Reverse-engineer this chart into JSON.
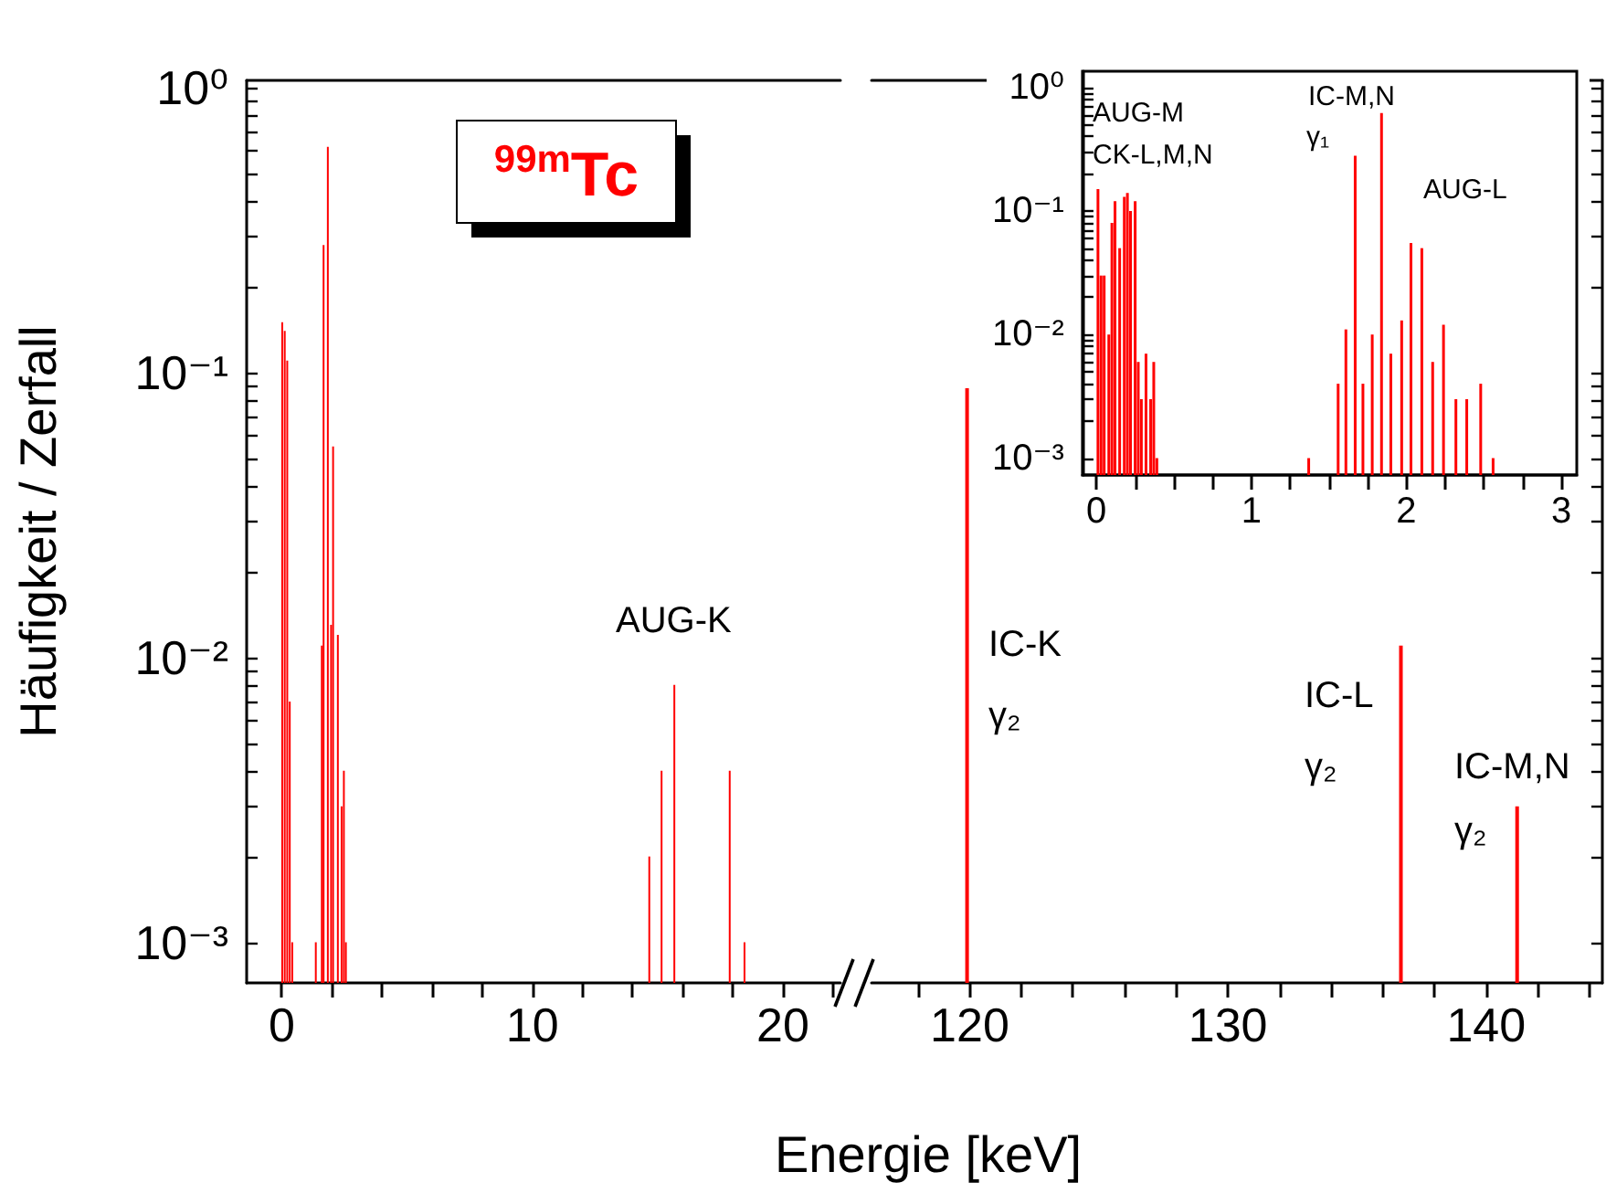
{
  "chart_data": [
    {
      "type": "bar",
      "title": "$^{99m}$Tc",
      "xlabel": "Energie [keV]",
      "ylabel": "Häufigkeit / Zerfall",
      "log": true,
      "grid": false,
      "color": "#ff0000",
      "x": [
        0.02,
        0.12,
        0.22,
        0.32,
        0.42,
        1.36,
        1.6,
        1.67,
        1.84,
        1.97,
        2.05,
        2.24,
        2.39,
        2.48,
        2.56,
        14.67,
        15.16,
        15.67,
        17.88,
        18.47
      ],
      "values": [
        0.15,
        0.14,
        0.11,
        0.007,
        0.001,
        0.001,
        0.011,
        0.28,
        0.62,
        0.013,
        0.055,
        0.012,
        0.003,
        0.004,
        0.001,
        0.002,
        0.004,
        0.008,
        0.004,
        0.001
      ],
      "xlim": [
        -1.4,
        22.3
      ],
      "xticks": [
        0,
        {
          "value": 2,
          "label": null
        },
        {
          "value": 4,
          "label": null
        },
        {
          "value": 6,
          "label": null
        },
        {
          "value": 8,
          "label": null
        },
        10,
        {
          "value": 12,
          "label": null
        },
        {
          "value": 14,
          "label": null
        },
        {
          "value": 16,
          "label": null
        },
        {
          "value": 18,
          "label": null
        },
        20,
        {
          "value": 22,
          "label": null
        }
      ],
      "ylim": [
        0.00072,
        1.06
      ],
      "yticks": [
        {
          "value": 0.001,
          "label": "10⁻³"
        },
        {
          "value": 0.002,
          "label": null
        },
        {
          "value": 0.003,
          "label": null
        },
        {
          "value": 0.004,
          "label": null
        },
        {
          "value": 0.005,
          "label": null
        },
        {
          "value": 0.006,
          "label": null
        },
        {
          "value": 0.007,
          "label": null
        },
        {
          "value": 0.008,
          "label": null
        },
        {
          "value": 0.009,
          "label": null
        },
        {
          "value": 0.01,
          "label": "10⁻²"
        },
        {
          "value": 0.02,
          "label": null
        },
        {
          "value": 0.03,
          "label": null
        },
        {
          "value": 0.04,
          "label": null
        },
        {
          "value": 0.05,
          "label": null
        },
        {
          "value": 0.06,
          "label": null
        },
        {
          "value": 0.07,
          "label": null
        },
        {
          "value": 0.08,
          "label": null
        },
        {
          "value": 0.09,
          "label": null
        },
        {
          "value": 0.1,
          "label": "10⁻¹"
        },
        {
          "value": 0.2,
          "label": null
        },
        {
          "value": 0.3,
          "label": null
        },
        {
          "value": 0.4,
          "label": null
        },
        {
          "value": 0.5,
          "label": null
        },
        {
          "value": 0.6,
          "label": null
        },
        {
          "value": 0.7,
          "label": null
        },
        {
          "value": 0.8,
          "label": null
        },
        {
          "value": 0.9,
          "label": null
        },
        {
          "value": 1,
          "label": "10⁰"
        }
      ],
      "annotations": [
        "AUG-K"
      ]
    },
    {
      "type": "bar",
      "log": true,
      "grid": false,
      "color": "#ff0000",
      "tick_labels": "x",
      "x": [
        119.9,
        136.7,
        141.2
      ],
      "values": [
        0.088,
        0.011,
        0.003
      ],
      "xlim": [
        116.2,
        144.5
      ],
      "xticks": [
        {
          "value": 118,
          "label": null
        },
        120,
        {
          "value": 122,
          "label": null
        },
        {
          "value": 124,
          "label": null
        },
        {
          "value": 126,
          "label": null
        },
        {
          "value": 128,
          "label": null
        },
        130,
        {
          "value": 132,
          "label": null
        },
        {
          "value": 134,
          "label": null
        },
        {
          "value": 136,
          "label": null
        },
        {
          "value": 138,
          "label": null
        },
        140,
        {
          "value": 142,
          "label": null
        },
        {
          "value": 144,
          "label": null
        }
      ],
      "ylim": [
        0.00072,
        1.06
      ],
      "yticks": [
        {
          "value": 0.001,
          "label": null
        },
        {
          "value": 0.002,
          "label": null
        },
        {
          "value": 0.003,
          "label": null
        },
        {
          "value": 0.004,
          "label": null
        },
        {
          "value": 0.005,
          "label": null
        },
        {
          "value": 0.006,
          "label": null
        },
        {
          "value": 0.007,
          "label": null
        },
        {
          "value": 0.008,
          "label": null
        },
        {
          "value": 0.009,
          "label": null
        },
        {
          "value": 0.01,
          "label": null
        },
        {
          "value": 0.02,
          "label": null
        },
        {
          "value": 0.03,
          "label": null
        },
        {
          "value": 0.04,
          "label": null
        },
        {
          "value": 0.05,
          "label": null
        },
        {
          "value": 0.06,
          "label": null
        },
        {
          "value": 0.07,
          "label": null
        },
        {
          "value": 0.08,
          "label": null
        },
        {
          "value": 0.09,
          "label": null
        },
        {
          "value": 0.1,
          "label": null
        },
        {
          "value": 0.2,
          "label": null
        },
        {
          "value": 0.3,
          "label": null
        },
        {
          "value": 0.4,
          "label": null
        },
        {
          "value": 0.5,
          "label": null
        },
        {
          "value": 0.6,
          "label": null
        },
        {
          "value": 0.7,
          "label": null
        },
        {
          "value": 0.8,
          "label": null
        },
        {
          "value": 0.9,
          "label": null
        },
        {
          "value": 1,
          "label": null
        }
      ],
      "annotations": [
        "IC-K",
        "γ₂",
        "IC-L",
        "γ₂",
        "IC-M,N",
        "γ₂"
      ]
    },
    {
      "type": "bar",
      "log": true,
      "grid": false,
      "color": "#ff0000",
      "x": [
        0.01,
        0.03,
        0.05,
        0.08,
        0.1,
        0.12,
        0.15,
        0.18,
        0.2,
        0.22,
        0.25,
        0.27,
        0.29,
        0.32,
        0.35,
        0.37,
        0.39,
        1.37,
        1.56,
        1.61,
        1.67,
        1.72,
        1.78,
        1.84,
        1.9,
        1.97,
        2.03,
        2.1,
        2.17,
        2.24,
        2.32,
        2.39,
        2.48,
        2.56
      ],
      "values": [
        0.15,
        0.03,
        0.03,
        0.01,
        0.08,
        0.12,
        0.05,
        0.13,
        0.14,
        0.1,
        0.12,
        0.006,
        0.003,
        0.007,
        0.003,
        0.006,
        0.001,
        0.001,
        0.004,
        0.011,
        0.28,
        0.004,
        0.01,
        0.62,
        0.007,
        0.013,
        0.055,
        0.05,
        0.006,
        0.012,
        0.003,
        0.003,
        0.004,
        0.001
      ],
      "xlim": [
        -0.09,
        3.1
      ],
      "xticks": [
        0,
        {
          "value": 0.25,
          "label": null
        },
        {
          "value": 0.5,
          "label": null
        },
        {
          "value": 0.75,
          "label": null
        },
        1,
        {
          "value": 1.25,
          "label": null
        },
        {
          "value": 1.5,
          "label": null
        },
        {
          "value": 1.75,
          "label": null
        },
        2,
        {
          "value": 2.25,
          "label": null
        },
        {
          "value": 2.5,
          "label": null
        },
        {
          "value": 2.75,
          "label": null
        },
        3
      ],
      "ylim": [
        0.00073,
        1.35
      ],
      "yticks": [
        {
          "value": 0.001,
          "label": "10⁻³"
        },
        {
          "value": 0.002,
          "label": null
        },
        {
          "value": 0.003,
          "label": null
        },
        {
          "value": 0.004,
          "label": null
        },
        {
          "value": 0.005,
          "label": null
        },
        {
          "value": 0.006,
          "label": null
        },
        {
          "value": 0.007,
          "label": null
        },
        {
          "value": 0.008,
          "label": null
        },
        {
          "value": 0.009,
          "label": null
        },
        {
          "value": 0.01,
          "label": "10⁻²"
        },
        {
          "value": 0.02,
          "label": null
        },
        {
          "value": 0.03,
          "label": null
        },
        {
          "value": 0.04,
          "label": null
        },
        {
          "value": 0.05,
          "label": null
        },
        {
          "value": 0.06,
          "label": null
        },
        {
          "value": 0.07,
          "label": null
        },
        {
          "value": 0.08,
          "label": null
        },
        {
          "value": 0.09,
          "label": null
        },
        {
          "value": 0.1,
          "label": "10⁻¹"
        },
        {
          "value": 0.2,
          "label": null
        },
        {
          "value": 0.3,
          "label": null
        },
        {
          "value": 0.4,
          "label": null
        },
        {
          "value": 0.5,
          "label": null
        },
        {
          "value": 0.6,
          "label": null
        },
        {
          "value": 0.7,
          "label": null
        },
        {
          "value": 0.8,
          "label": null
        },
        {
          "value": 0.9,
          "label": null
        },
        {
          "value": 1,
          "label": "10⁰"
        }
      ],
      "annotations": [
        "AUG-M",
        "CK-L,M,N",
        "IC-M,N",
        "γ₁",
        "AUG-L"
      ]
    }
  ]
}
